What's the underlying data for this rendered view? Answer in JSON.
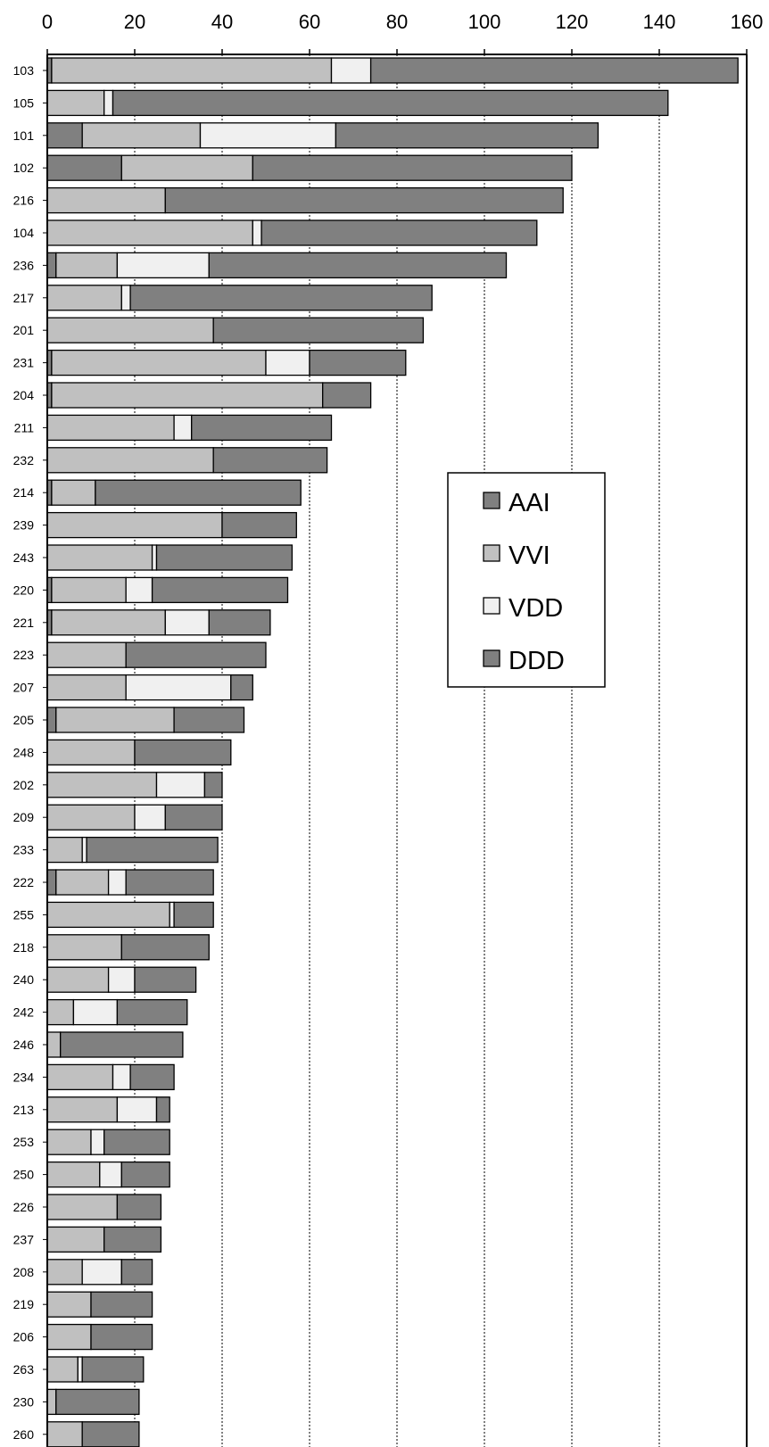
{
  "chart_data": {
    "type": "bar",
    "orientation": "horizontal",
    "stacked": true,
    "title": "",
    "xlabel": "",
    "ylabel": "",
    "xlim": [
      0,
      160
    ],
    "xticks": [
      "0",
      "20",
      "40",
      "60",
      "80",
      "100",
      "120",
      "140",
      "160"
    ],
    "grid": "vertical dashed",
    "legend_position": "center-right",
    "legend_entries": [
      "AAI",
      "VVI",
      "VDD",
      "DDD"
    ],
    "colors": {
      "AAI": "#808080",
      "VVI": "#c0c0c0",
      "VDD": "#f0f0f0",
      "DDD": "#808080"
    },
    "categories": [
      "103",
      "105",
      "101",
      "102",
      "216",
      "104",
      "236",
      "217",
      "201",
      "231",
      "204",
      "211",
      "232",
      "214",
      "239",
      "243",
      "220",
      "221",
      "223",
      "207",
      "205",
      "248",
      "202",
      "209",
      "233",
      "222",
      "255",
      "218",
      "240",
      "242",
      "246",
      "234",
      "213",
      "253",
      "250",
      "226",
      "237",
      "208",
      "219",
      "206",
      "263",
      "230",
      "260"
    ],
    "series": [
      {
        "name": "AAI",
        "values": [
          1,
          0,
          8,
          17,
          0,
          0,
          2,
          0,
          0,
          1,
          1,
          0,
          0,
          1,
          0,
          0,
          1,
          1,
          0,
          0,
          2,
          0,
          0,
          0,
          0,
          2,
          0,
          0,
          0,
          0,
          0,
          0,
          0,
          0,
          0,
          0,
          0,
          0,
          0,
          0,
          0,
          0,
          0
        ]
      },
      {
        "name": "VVI",
        "values": [
          64,
          13,
          27,
          30,
          27,
          47,
          14,
          17,
          38,
          49,
          62,
          29,
          38,
          10,
          40,
          24,
          17,
          26,
          18,
          18,
          27,
          20,
          25,
          20,
          8,
          12,
          28,
          17,
          14,
          6,
          3,
          15,
          16,
          10,
          12,
          16,
          13,
          8,
          10,
          10,
          7,
          2,
          8
        ]
      },
      {
        "name": "VDD",
        "values": [
          9,
          2,
          31,
          0,
          0,
          2,
          21,
          2,
          0,
          10,
          0,
          4,
          0,
          0,
          0,
          1,
          6,
          10,
          0,
          24,
          0,
          0,
          11,
          7,
          1,
          4,
          1,
          0,
          6,
          10,
          0,
          4,
          9,
          3,
          5,
          0,
          0,
          9,
          0,
          0,
          1,
          0,
          0
        ]
      },
      {
        "name": "DDD",
        "values": [
          84,
          127,
          60,
          73,
          91,
          63,
          68,
          69,
          48,
          22,
          11,
          32,
          26,
          47,
          17,
          31,
          31,
          14,
          32,
          5,
          16,
          22,
          4,
          13,
          30,
          20,
          9,
          20,
          14,
          16,
          28,
          10,
          3,
          15,
          11,
          10,
          13,
          7,
          14,
          14,
          14,
          19,
          13
        ]
      }
    ]
  }
}
